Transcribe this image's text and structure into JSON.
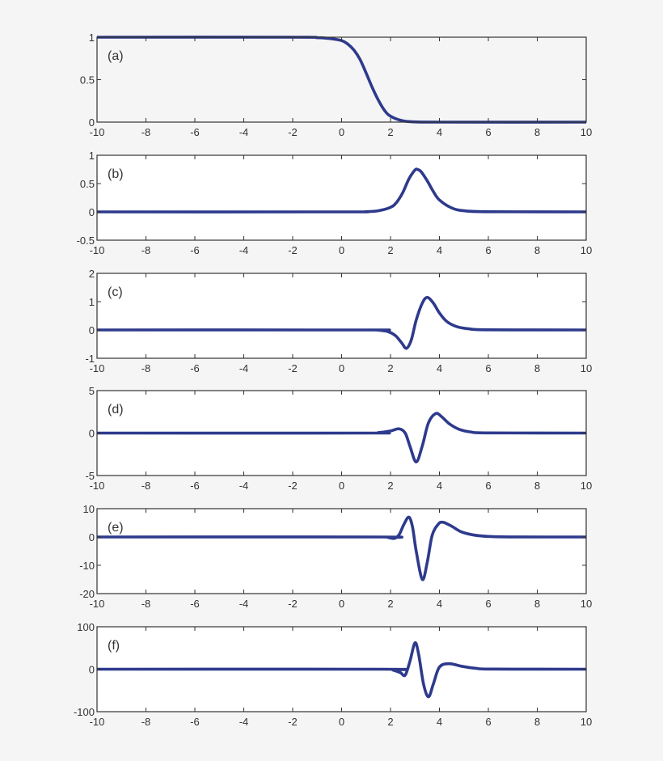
{
  "figure": {
    "background": "#f5f5f5",
    "plot_background": "#ffffff",
    "line_color": "#2e3a8c",
    "axis_color": "#333333"
  },
  "chart_data": [
    {
      "type": "line",
      "label": "(a)",
      "xlim": [
        -10,
        10
      ],
      "ylim": [
        0,
        1
      ],
      "xticks": [
        -10,
        -8,
        -6,
        -4,
        -2,
        0,
        2,
        4,
        6,
        8,
        10
      ],
      "xtick_labels": [
        "-10",
        "-8",
        "-6",
        "-4",
        "-2",
        "0",
        "2",
        "4",
        "6",
        "8",
        "10"
      ],
      "yticks": [
        0,
        0.5,
        1
      ],
      "ytick_labels": [
        "0",
        "0.5",
        "1"
      ],
      "grid": false,
      "plot_background": "#f5f5f5",
      "x": [
        -10,
        -2,
        -1,
        -0.5,
        0,
        0.25,
        0.5,
        0.75,
        1,
        1.25,
        1.5,
        1.75,
        2,
        2.5,
        3,
        4,
        10
      ],
      "y": [
        1,
        1,
        0.995,
        0.985,
        0.96,
        0.92,
        0.85,
        0.74,
        0.58,
        0.41,
        0.26,
        0.14,
        0.07,
        0.015,
        0.003,
        0,
        0
      ]
    },
    {
      "type": "line",
      "label": "(b)",
      "xlim": [
        -10,
        10
      ],
      "ylim": [
        -0.5,
        1
      ],
      "xticks": [
        -10,
        -8,
        -6,
        -4,
        -2,
        0,
        2,
        4,
        6,
        8,
        10
      ],
      "xtick_labels": [
        "-10",
        "-8",
        "-6",
        "-4",
        "-2",
        "0",
        "2",
        "4",
        "6",
        "8",
        "10"
      ],
      "yticks": [
        -0.5,
        0,
        0.5,
        1
      ],
      "ytick_labels": [
        "-0.5",
        "0",
        "0.5",
        "1"
      ],
      "grid": false,
      "x": [
        -10,
        0,
        1,
        1.5,
        2,
        2.25,
        2.5,
        2.75,
        3,
        3.1,
        3.25,
        3.5,
        3.75,
        4,
        4.5,
        5,
        6,
        10
      ],
      "y": [
        0,
        0,
        0.004,
        0.02,
        0.08,
        0.17,
        0.34,
        0.58,
        0.74,
        0.75,
        0.71,
        0.55,
        0.36,
        0.21,
        0.07,
        0.02,
        0.003,
        0
      ]
    },
    {
      "type": "line",
      "label": "(c)",
      "xlim": [
        -10,
        10
      ],
      "ylim": [
        -1,
        2
      ],
      "xticks": [
        -10,
        -8,
        -6,
        -4,
        -2,
        0,
        2,
        4,
        6,
        8,
        10
      ],
      "xtick_labels": [
        "-10",
        "-8",
        "-6",
        "-4",
        "-2",
        "0",
        "2",
        "4",
        "6",
        "8",
        "10"
      ],
      "yticks": [
        -1,
        0,
        1,
        2
      ],
      "ytick_labels": [
        "-1",
        "0",
        "1",
        "2"
      ],
      "grid": false,
      "x": [
        -10,
        1,
        1.5,
        1.9,
        2.2,
        2.45,
        2.65,
        2.85,
        3.05,
        3.3,
        3.5,
        3.75,
        4,
        4.3,
        4.7,
        5.2,
        6,
        10
      ],
      "y": [
        0,
        0,
        -0.01,
        -0.06,
        -0.2,
        -0.45,
        -0.65,
        -0.35,
        0.35,
        0.95,
        1.15,
        0.95,
        0.6,
        0.3,
        0.12,
        0.04,
        0.005,
        0
      ]
    },
    {
      "type": "line",
      "label": "(d)",
      "xlim": [
        -10,
        10
      ],
      "ylim": [
        -5,
        5
      ],
      "xticks": [
        -10,
        -8,
        -6,
        -4,
        -2,
        0,
        2,
        4,
        6,
        8,
        10
      ],
      "xtick_labels": [
        "-10",
        "-8",
        "-6",
        "-4",
        "-2",
        "0",
        "2",
        "4",
        "6",
        "8",
        "10"
      ],
      "yticks": [
        -5,
        0,
        5
      ],
      "ytick_labels": [
        "-5",
        "0",
        "5"
      ],
      "grid": false,
      "x": [
        -10,
        1,
        1.5,
        2,
        2.35,
        2.6,
        2.8,
        3.05,
        3.3,
        3.55,
        3.85,
        4.1,
        4.4,
        4.8,
        5.3,
        6,
        10
      ],
      "y": [
        0,
        0,
        0.05,
        0.25,
        0.5,
        0.0,
        -1.6,
        -3.4,
        -1.5,
        1.2,
        2.3,
        1.9,
        1.1,
        0.45,
        0.12,
        0.02,
        0
      ]
    },
    {
      "type": "line",
      "label": "(e)",
      "xlim": [
        -10,
        10
      ],
      "ylim": [
        -20,
        10
      ],
      "xticks": [
        -10,
        -8,
        -6,
        -4,
        -2,
        0,
        2,
        4,
        6,
        8,
        10
      ],
      "xtick_labels": [
        "-10",
        "-8",
        "-6",
        "-4",
        "-2",
        "0",
        "2",
        "4",
        "6",
        "8",
        "10"
      ],
      "yticks": [
        -20,
        -10,
        0,
        10
      ],
      "ytick_labels": [
        "-20",
        "-10",
        "0",
        "10"
      ],
      "grid": false,
      "x": [
        -10,
        1.5,
        1.9,
        2.15,
        2.35,
        2.55,
        2.75,
        2.9,
        3.05,
        3.3,
        3.5,
        3.7,
        3.95,
        4.15,
        4.5,
        4.9,
        5.4,
        6,
        7,
        10
      ],
      "y": [
        0,
        0,
        -0.2,
        -0.5,
        0.8,
        4.5,
        7.0,
        3.5,
        -5.0,
        -15.0,
        -9.0,
        0.5,
        4.5,
        5.2,
        3.8,
        1.8,
        0.7,
        0.2,
        0.02,
        0
      ]
    },
    {
      "type": "line",
      "label": "(f)",
      "xlim": [
        -10,
        10
      ],
      "ylim": [
        -100,
        100
      ],
      "xticks": [
        -10,
        -8,
        -6,
        -4,
        -2,
        0,
        2,
        4,
        6,
        8,
        10
      ],
      "xtick_labels": [
        "-10",
        "-8",
        "-6",
        "-4",
        "-2",
        "0",
        "2",
        "4",
        "6",
        "8",
        "10"
      ],
      "yticks": [
        -100,
        0,
        100
      ],
      "ytick_labels": [
        "-100",
        "0",
        "100"
      ],
      "grid": false,
      "x": [
        -10,
        1.7,
        2.1,
        2.4,
        2.6,
        2.8,
        3.0,
        3.15,
        3.35,
        3.55,
        3.75,
        4.0,
        4.4,
        4.9,
        5.5,
        6.2,
        10
      ],
      "y": [
        0,
        0,
        -2,
        -8,
        -14,
        20,
        62,
        35,
        -35,
        -65,
        -35,
        5,
        13,
        7,
        2,
        0.3,
        0
      ]
    }
  ]
}
